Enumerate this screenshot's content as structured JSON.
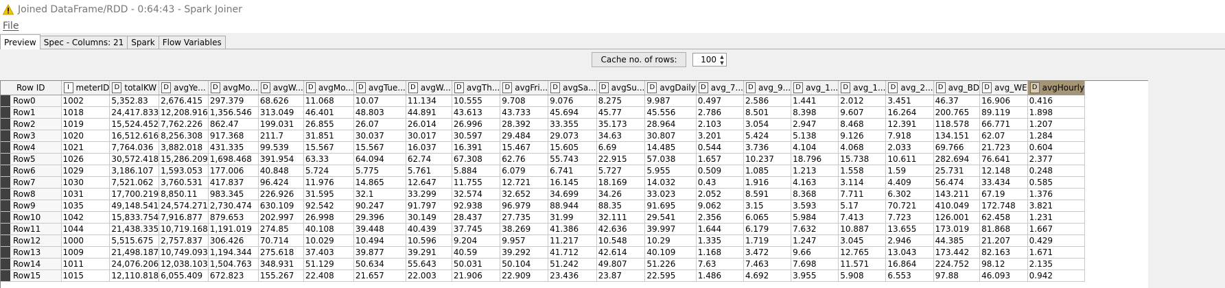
{
  "window": {
    "title": "Joined DataFrame/RDD - 0:64:43 - Spark Joiner",
    "title_icon": "warning-icon"
  },
  "menu": {
    "file": "File"
  },
  "tabs": [
    {
      "label": "Preview",
      "active": true
    },
    {
      "label": "Spec - Columns: 21",
      "active": false
    },
    {
      "label": "Spark",
      "active": false
    },
    {
      "label": "Flow Variables",
      "active": false
    }
  ],
  "cache": {
    "button_label": "Cache no. of rows:",
    "value": "100"
  },
  "table": {
    "rowid_header": "Row ID",
    "columns": [
      {
        "type": "I",
        "name": "meterID"
      },
      {
        "type": "D",
        "name": "totalKW"
      },
      {
        "type": "D",
        "name": "avgYe..."
      },
      {
        "type": "D",
        "name": "avgMo..."
      },
      {
        "type": "D",
        "name": "avgW..."
      },
      {
        "type": "D",
        "name": "avgMo..."
      },
      {
        "type": "D",
        "name": "avgTue..."
      },
      {
        "type": "D",
        "name": "avgW..."
      },
      {
        "type": "D",
        "name": "avgTh..."
      },
      {
        "type": "D",
        "name": "avgFri..."
      },
      {
        "type": "D",
        "name": "avgSa..."
      },
      {
        "type": "D",
        "name": "avgSu..."
      },
      {
        "type": "D",
        "name": "avgDaily"
      },
      {
        "type": "D",
        "name": "avg_7..."
      },
      {
        "type": "D",
        "name": "avg_9..."
      },
      {
        "type": "D",
        "name": "avg_1..."
      },
      {
        "type": "D",
        "name": "avg_1..."
      },
      {
        "type": "D",
        "name": "avg_2..."
      },
      {
        "type": "D",
        "name": "avg_BD"
      },
      {
        "type": "D",
        "name": "avg_WE"
      },
      {
        "type": "D",
        "name": "avgHourly",
        "highlight": true
      }
    ],
    "rows": [
      {
        "id": "Row0",
        "cells": [
          "1002",
          "5,352.83",
          "2,676.415",
          "297.379",
          "68.626",
          "11.068",
          "10.07",
          "11.134",
          "10.555",
          "9.708",
          "9.076",
          "8.275",
          "9.987",
          "0.497",
          "2.586",
          "1.441",
          "2.012",
          "3.451",
          "46.37",
          "16.906",
          "0.416"
        ]
      },
      {
        "id": "Row1",
        "cells": [
          "1018",
          "24,417.833",
          "12,208.916",
          "1,356.546",
          "313.049",
          "46.401",
          "48.803",
          "44.891",
          "43.613",
          "43.733",
          "45.694",
          "45.77",
          "45.556",
          "2.786",
          "8.501",
          "8.398",
          "9.607",
          "16.264",
          "200.765",
          "89.119",
          "1.898"
        ]
      },
      {
        "id": "Row2",
        "cells": [
          "1019",
          "15,524.452",
          "7,762.226",
          "862.47",
          "199.031",
          "26.855",
          "26.07",
          "26.014",
          "26.996",
          "28.392",
          "33.355",
          "35.173",
          "28.964",
          "2.103",
          "3.054",
          "2.947",
          "8.468",
          "12.391",
          "118.578",
          "66.771",
          "1.207"
        ]
      },
      {
        "id": "Row3",
        "cells": [
          "1020",
          "16,512.616",
          "8,256.308",
          "917.368",
          "211.7",
          "31.851",
          "30.037",
          "30.017",
          "30.597",
          "29.484",
          "29.073",
          "34.63",
          "30.807",
          "3.201",
          "5.424",
          "5.138",
          "9.126",
          "7.918",
          "134.151",
          "62.07",
          "1.284"
        ]
      },
      {
        "id": "Row4",
        "cells": [
          "1021",
          "7,764.036",
          "3,882.018",
          "431.335",
          "99.539",
          "15.567",
          "15.567",
          "16.037",
          "16.391",
          "15.467",
          "15.605",
          "6.69",
          "14.485",
          "0.544",
          "3.736",
          "4.104",
          "4.068",
          "2.033",
          "69.766",
          "21.723",
          "0.604"
        ]
      },
      {
        "id": "Row5",
        "cells": [
          "1026",
          "30,572.418",
          "15,286.209",
          "1,698.468",
          "391.954",
          "63.33",
          "64.094",
          "62.74",
          "67.308",
          "62.76",
          "55.743",
          "22.915",
          "57.038",
          "1.657",
          "10.237",
          "18.796",
          "15.738",
          "10.611",
          "282.694",
          "76.641",
          "2.377"
        ]
      },
      {
        "id": "Row6",
        "cells": [
          "1029",
          "3,186.107",
          "1,593.053",
          "177.006",
          "40.848",
          "5.724",
          "5.775",
          "5.761",
          "5.884",
          "6.079",
          "6.741",
          "5.727",
          "5.955",
          "0.509",
          "1.085",
          "1.213",
          "1.558",
          "1.59",
          "25.731",
          "12.148",
          "0.248"
        ]
      },
      {
        "id": "Row7",
        "cells": [
          "1030",
          "7,521.062",
          "3,760.531",
          "417.837",
          "96.424",
          "11.976",
          "14.865",
          "12.647",
          "11.755",
          "12.721",
          "16.145",
          "18.169",
          "14.032",
          "0.43",
          "1.916",
          "4.163",
          "3.114",
          "4.409",
          "56.474",
          "33.434",
          "0.585"
        ]
      },
      {
        "id": "Row8",
        "cells": [
          "1031",
          "17,700.219",
          "8,850.11",
          "983.345",
          "226.926",
          "31.595",
          "32.1",
          "33.299",
          "32.574",
          "32.652",
          "34.699",
          "34.26",
          "33.023",
          "2.052",
          "8.591",
          "8.368",
          "7.711",
          "6.302",
          "143.211",
          "67.19",
          "1.376"
        ]
      },
      {
        "id": "Row9",
        "cells": [
          "1035",
          "49,148.541",
          "24,574.271",
          "2,730.474",
          "630.109",
          "92.542",
          "90.247",
          "91.797",
          "92.938",
          "96.979",
          "88.944",
          "88.35",
          "91.695",
          "9.062",
          "3.15",
          "3.593",
          "5.17",
          "70.721",
          "410.049",
          "172.748",
          "3.821"
        ]
      },
      {
        "id": "Row10",
        "cells": [
          "1042",
          "15,833.754",
          "7,916.877",
          "879.653",
          "202.997",
          "26.998",
          "29.396",
          "30.149",
          "28.437",
          "27.735",
          "31.99",
          "32.111",
          "29.541",
          "2.356",
          "6.065",
          "5.984",
          "7.413",
          "7.723",
          "126.001",
          "62.458",
          "1.231"
        ]
      },
      {
        "id": "Row11",
        "cells": [
          "1044",
          "21,438.335",
          "10,719.168",
          "1,191.019",
          "274.85",
          "40.108",
          "39.448",
          "40.439",
          "37.745",
          "38.269",
          "41.386",
          "42.636",
          "39.997",
          "1.644",
          "6.179",
          "7.632",
          "10.887",
          "13.655",
          "173.019",
          "81.868",
          "1.667"
        ]
      },
      {
        "id": "Row12",
        "cells": [
          "1000",
          "5,515.675",
          "2,757.837",
          "306.426",
          "70.714",
          "10.029",
          "10.494",
          "10.596",
          "9.204",
          "9.957",
          "11.217",
          "10.548",
          "10.29",
          "1.335",
          "1.719",
          "1.247",
          "3.045",
          "2.946",
          "44.385",
          "21.207",
          "0.429"
        ]
      },
      {
        "id": "Row13",
        "cells": [
          "1009",
          "21,498.187",
          "10,749.093",
          "1,194.344",
          "275.618",
          "37.403",
          "39.877",
          "39.291",
          "40.59",
          "39.292",
          "41.712",
          "42.614",
          "40.109",
          "1.168",
          "3.472",
          "9.66",
          "12.765",
          "13.043",
          "173.442",
          "82.163",
          "1.671"
        ]
      },
      {
        "id": "Row14",
        "cells": [
          "1011",
          "24,076.206",
          "12,038.103",
          "1,504.763",
          "348.931",
          "51.129",
          "50.634",
          "55.643",
          "50.031",
          "50.104",
          "51.242",
          "49.807",
          "51.226",
          "7.63",
          "7.463",
          "7.698",
          "11.571",
          "16.864",
          "224.752",
          "98.12",
          "2.135"
        ]
      },
      {
        "id": "Row15",
        "cells": [
          "1015",
          "12,110.818",
          "6,055.409",
          "672.823",
          "155.267",
          "22.408",
          "21.657",
          "22.003",
          "21.906",
          "22.909",
          "23.436",
          "23.87",
          "22.595",
          "1.486",
          "4.692",
          "3.955",
          "5.908",
          "6.553",
          "97.88",
          "46.093",
          "0.942"
        ]
      }
    ]
  }
}
